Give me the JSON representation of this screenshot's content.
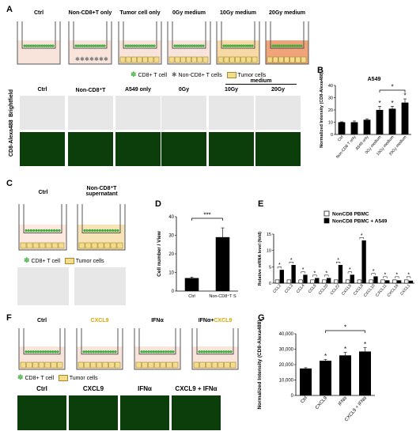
{
  "panelA": {
    "letter": "A",
    "wells": [
      "Ctrl",
      "Non-CD8+T only",
      "Tumor cell only",
      "0Gy medium",
      "10Gy medium",
      "20Gy medium"
    ],
    "legend": {
      "cd8": "CD8+ T cell",
      "noncd8": "Non-CD8+ T cells",
      "tumor": "Tumor cells"
    },
    "images": {
      "medium_label": "medium",
      "cols": [
        "Ctrl",
        "Non-CD8⁺T",
        "A549 only",
        "0Gy",
        "10Gy",
        "20Gy"
      ],
      "rows": [
        "Brightfield",
        "CD8-Alexa488"
      ]
    }
  },
  "panelB": {
    "letter": "B",
    "chart_data": {
      "type": "bar",
      "title": "A549",
      "ylabel": "Normalized Intensity (CD8-Alexa488)",
      "categories": [
        "Ctrl",
        "Non-CD8 T only",
        "A549 only",
        "0Gy medium",
        "10Gy medium",
        "20Gy medium"
      ],
      "values": [
        10,
        10,
        12,
        20,
        21,
        26
      ],
      "errors": [
        0.3,
        1,
        0.8,
        3,
        2,
        3
      ],
      "significance": [
        "",
        "",
        "",
        "*",
        "*",
        "*"
      ],
      "bracket": {
        "from": 3,
        "to": 5,
        "label": "*"
      },
      "ylim": [
        0,
        40
      ],
      "yticks": [
        "0",
        "10",
        "20",
        "30",
        "40"
      ]
    }
  },
  "panelC": {
    "letter": "C",
    "wells": [
      "Ctrl",
      "Non-CD8⁺T supernatant"
    ],
    "legend": {
      "cd8": "CD8+ T cell",
      "tumor": "Tumor cells"
    }
  },
  "panelD": {
    "letter": "D",
    "chart_data": {
      "type": "bar",
      "ylabel": "Cell number / View",
      "categories": [
        "Ctrl",
        "Non-CD8⁺T S"
      ],
      "values": [
        7,
        29
      ],
      "errors": [
        0.5,
        5
      ],
      "bracket": {
        "from": 0,
        "to": 1,
        "label": "***"
      },
      "ylim": [
        0,
        40
      ],
      "yticks": [
        "0",
        "10",
        "20",
        "30",
        "40"
      ]
    }
  },
  "panelE": {
    "letter": "E",
    "chart_data": {
      "type": "bar",
      "ylabel": "Relative mRNA level (fold)",
      "categories": [
        "CCL2",
        "CCL3",
        "CCL4",
        "CCL5",
        "CCL20",
        "CCL22",
        "CXCL5",
        "CXCL9",
        "CXCL10",
        "CXCL11",
        "CXCL16",
        "CXCL1"
      ],
      "series": [
        {
          "name": "NonCD8 PBMC",
          "values": [
            1,
            1,
            1,
            1,
            1,
            1,
            1,
            1,
            1,
            1,
            1,
            1
          ]
        },
        {
          "name": "NonCD8 PBMC + A549",
          "values": [
            4,
            5.5,
            2.5,
            1.5,
            1.5,
            5.5,
            2.5,
            13,
            2,
            0.8,
            0.8,
            0.7
          ]
        }
      ],
      "significance": [
        "*",
        "*",
        "*",
        "*",
        "*",
        "*",
        "*",
        "*",
        "*",
        "*",
        "*",
        "*"
      ],
      "ylim": [
        0,
        15
      ],
      "yticks": [
        "0",
        "5",
        "10",
        "15"
      ]
    }
  },
  "panelF": {
    "letter": "F",
    "wells": [
      "Ctrl",
      "CXCL9",
      "IFNα",
      "IFNα+CXCL9"
    ],
    "well_title_parts": {
      "ifn": "IFNα+",
      "cxcl9": "CXCL9"
    },
    "legend": {
      "cd8": "CD8+ T cell",
      "tumor": "Tumor cells"
    },
    "images": [
      "Ctrl",
      "CXCL9",
      "IFNα",
      "CXCL9 + IFNα"
    ],
    "accent": "#d9a500"
  },
  "panelG": {
    "letter": "G",
    "chart_data": {
      "type": "bar",
      "ylabel": "Normalized Intensity (CD8-Alexa488)",
      "categories": [
        "Ctrl",
        "CXCL9",
        "IFNα",
        "CXCL9 + IFNα"
      ],
      "values": [
        17500,
        22500,
        26000,
        28500
      ],
      "errors": [
        500,
        800,
        2000,
        2500
      ],
      "significance": [
        "",
        "*",
        "*",
        "*"
      ],
      "bracket": {
        "from": 1,
        "to": 3,
        "label": "*"
      },
      "ylim": [
        0,
        40000
      ],
      "yticks": [
        "0",
        "10,000",
        "20,000",
        "30,000",
        "40,000"
      ]
    }
  },
  "colors": {
    "medium": "#f8e4da",
    "tumor": "#f3dd8c",
    "tumor_stroke": "#a68a2c",
    "cd8": "#3fae3f",
    "medium_10gy": "#f7d9a6",
    "medium_20gy": "#f1a47a",
    "fluorescence": "#0b3e0b",
    "brightfield": "#e7e7e7"
  }
}
